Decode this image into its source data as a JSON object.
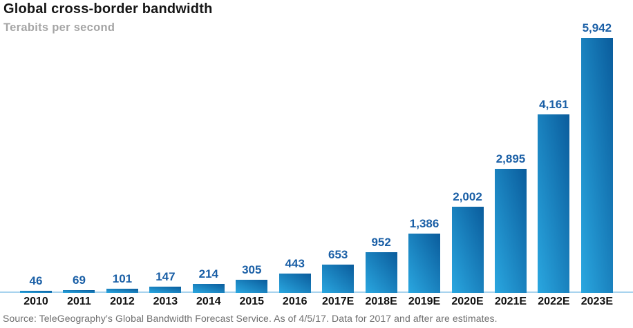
{
  "header": {
    "title": "Global cross-border bandwidth",
    "subtitle": "Terabits per second"
  },
  "footer": {
    "source": "Source: TeleGeography’s Global Bandwidth Forecast Service. As of 4/5/17. Data for 2017 and after are estimates."
  },
  "colors": {
    "bar_gradient_light": "#2aa7e0",
    "bar_gradient_dark": "#0a5c9c",
    "value_label": "#1a5fa6",
    "axis_line": "#a8d3ee",
    "title": "#161616",
    "subtitle": "#a5a5a5",
    "year_label": "#111111",
    "source": "#6e6e6e"
  },
  "chart_data": {
    "type": "bar",
    "title": "Global cross-border bandwidth",
    "units": "Terabits per second",
    "categories": [
      "2010",
      "2011",
      "2012",
      "2013",
      "2014",
      "2015",
      "2016",
      "2017E",
      "2018E",
      "2019E",
      "2020E",
      "2021E",
      "2022E",
      "2023E"
    ],
    "values": [
      46,
      69,
      101,
      147,
      214,
      305,
      443,
      653,
      952,
      1386,
      2002,
      2895,
      4161,
      5942
    ],
    "value_labels": [
      "46",
      "69",
      "101",
      "147",
      "214",
      "305",
      "443",
      "653",
      "952",
      "1,386",
      "2,002",
      "2,895",
      "4,161",
      "5,942"
    ],
    "ylim": [
      0,
      5942
    ],
    "grid": false,
    "legend": "none",
    "estimates_from_category": "2017E",
    "source": "Source: TeleGeography’s Global Bandwidth Forecast Service. As of 4/5/17. Data for 2017 and after are estimates."
  }
}
